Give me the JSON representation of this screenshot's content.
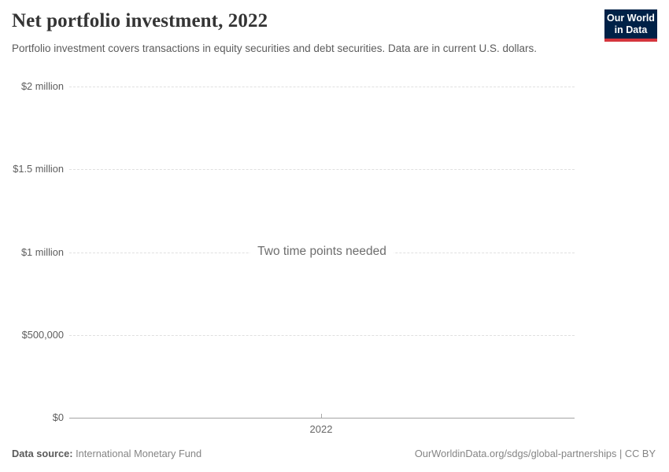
{
  "header": {
    "title": "Net portfolio investment, 2022",
    "subtitle": "Portfolio investment covers transactions in equity securities and debt securities. Data are in current U.S. dollars.",
    "logo": {
      "line1": "Our World",
      "line2": "in Data",
      "bg_color": "#002147",
      "bar_color": "#d5353d"
    }
  },
  "chart_data": {
    "type": "line",
    "title": "Net portfolio investment, 2022",
    "xlabel": "",
    "ylabel": "",
    "series": [],
    "empty_state_message": "Two time points needed",
    "x_tick_labels": [
      "2022"
    ],
    "y_tick_labels": [
      "$0",
      "$500,000",
      "$1 million",
      "$1.5 million",
      "$2 million"
    ],
    "y_tick_values": [
      0,
      500000,
      1000000,
      1500000,
      2000000
    ],
    "ylim": [
      0,
      2000000
    ],
    "grid": "horizontal-dashed",
    "legend": "none"
  },
  "footer": {
    "data_source_label": "Data source:",
    "data_source_value": "International Monetary Fund",
    "credit": "OurWorldinData.org/sdgs/global-partnerships | CC BY"
  },
  "colors": {
    "title": "#343434",
    "subtitle": "#5c5c5c",
    "gridline": "#e0e0e0",
    "axis_line": "#a3a3a3"
  }
}
